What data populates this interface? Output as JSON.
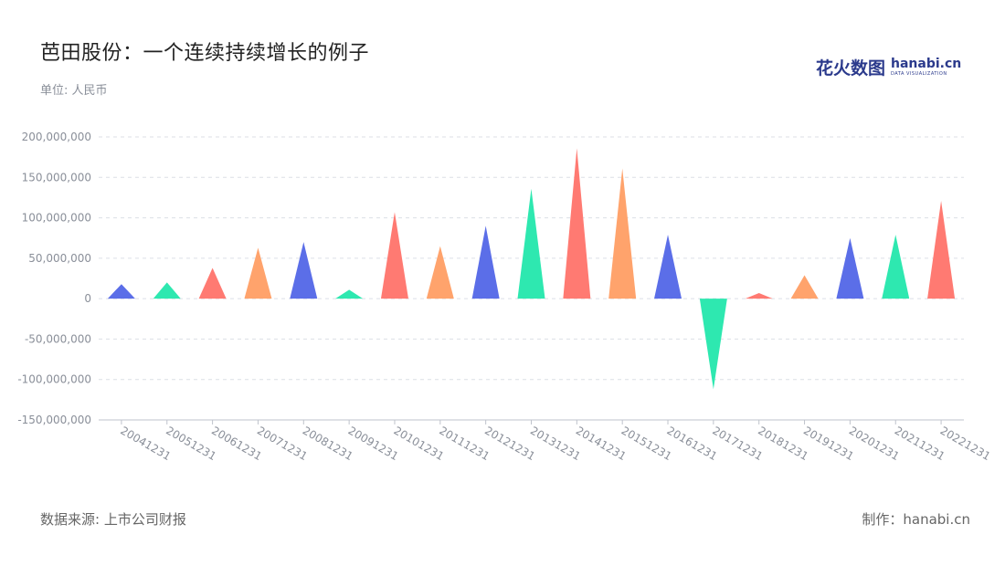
{
  "title": "芭田股份：一个连续持续增长的例子",
  "unit": "单位: 人民币",
  "logo": {
    "cn": "花火数图",
    "en": "hanabi.cn",
    "tagline": "DATA VISUALIZATION"
  },
  "source": "数据来源: 上市公司财报",
  "maker": "制作：hanabi.cn",
  "colors": [
    "#5b6ee8",
    "#2ee8b0",
    "#ff7a72",
    "#ffa36c"
  ],
  "chart_data": {
    "type": "bar",
    "shape": "triangle",
    "categories": [
      "20041231",
      "20051231",
      "20061231",
      "20071231",
      "20081231",
      "20091231",
      "20101231",
      "20111231",
      "20121231",
      "20131231",
      "20141231",
      "20151231",
      "20161231",
      "20171231",
      "20181231",
      "20191231",
      "20201231",
      "20211231",
      "20221231"
    ],
    "values": [
      18000000,
      20000000,
      38000000,
      63000000,
      70000000,
      11000000,
      107000000,
      65000000,
      90000000,
      136000000,
      186000000,
      161000000,
      79000000,
      -112000000,
      7000000,
      29000000,
      75000000,
      79000000,
      121000000
    ],
    "y_ticks": [
      "200,000,000",
      "150,000,000",
      "100,000,000",
      "50,000,000",
      "0",
      "-50,000,000",
      "-100,000,000",
      "-150,000,000"
    ],
    "ylim": [
      -150000000,
      200000000
    ],
    "grid": true,
    "legend": "none"
  }
}
